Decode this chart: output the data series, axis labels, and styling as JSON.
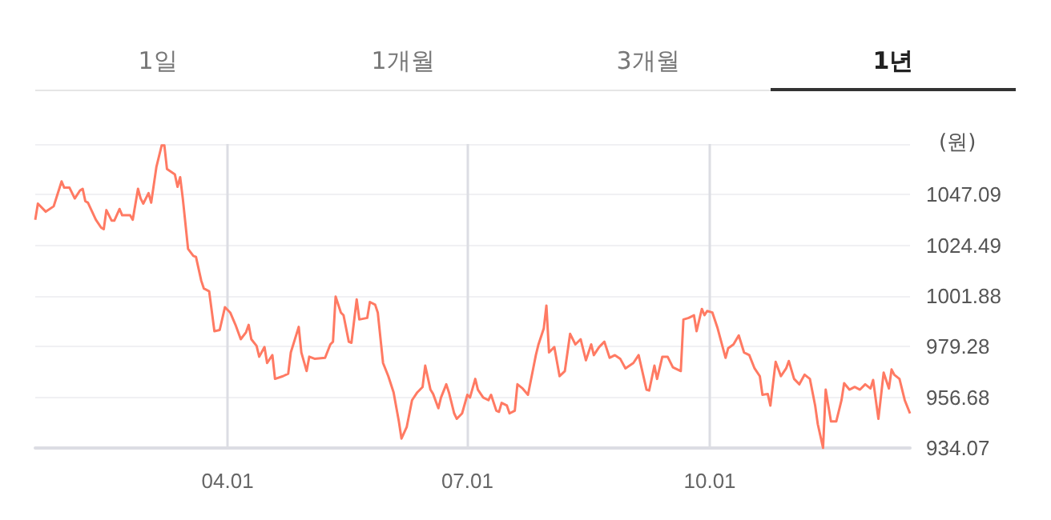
{
  "chart_data": {
    "type": "line",
    "ylabel": "(원)",
    "annotations": [
      "1일",
      "1개월",
      "3개월",
      "1년"
    ],
    "x": [
      "--01-18",
      "--01-19",
      "--01-22",
      "--01-25",
      "--01-28",
      "--01-29",
      "--01-31",
      "--02-02",
      "--02-04",
      "--02-05",
      "--02-06",
      "--02-07",
      "--02-10",
      "--02-12",
      "--02-13",
      "--02-14",
      "--02-16",
      "--02-17",
      "--02-19",
      "--02-20",
      "--02-23",
      "--02-24",
      "--02-26",
      "--02-27",
      "--02-28",
      "--03-02",
      "--03-03",
      "--03-05",
      "--03-07",
      "--03-08",
      "--03-09",
      "--03-12",
      "--03-13",
      "--03-14",
      "--03-15",
      "--03-17",
      "--03-19",
      "--03-20",
      "--03-22",
      "--03-23",
      "--03-25",
      "--03-27",
      "--03-29",
      "--03-31",
      "--04-02",
      "--04-04",
      "--04-06",
      "--04-08",
      "--04-09",
      "--04-10",
      "--04-12",
      "--04-13",
      "--04-15",
      "--04-16",
      "--04-18",
      "--04-19",
      "--04-22",
      "--04-24",
      "--04-25",
      "--04-28",
      "--04-29",
      "--05-01",
      "--05-02",
      "--05-04",
      "--05-08",
      "--05-10",
      "--05-11",
      "--05-12",
      "--05-14",
      "--05-15",
      "--05-17",
      "--05-18",
      "--05-20",
      "--05-21",
      "--05-24",
      "--05-25",
      "--05-27",
      "--05-28",
      "--05-30",
      "--06-01",
      "--06-03",
      "--06-05",
      "--06-06",
      "--06-08",
      "--06-10",
      "--06-12",
      "--06-14",
      "--06-15",
      "--06-17",
      "--06-18",
      "--06-20",
      "--06-21",
      "--06-23",
      "--06-24",
      "--06-26",
      "--06-27",
      "--06-29",
      "--07-01",
      "--07-02",
      "--07-04",
      "--07-05",
      "--07-07",
      "--07-09",
      "--07-10",
      "--07-12",
      "--07-13",
      "--07-14",
      "--07-16",
      "--07-17",
      "--07-19",
      "--07-20",
      "--07-22",
      "--07-24",
      "--07-26",
      "--07-27",
      "--07-28",
      "--07-30",
      "--07-31",
      "--08-01",
      "--08-03",
      "--08-05",
      "--08-07",
      "--08-09",
      "--08-11",
      "--08-13",
      "--08-15",
      "--08-17",
      "--08-18",
      "--08-20",
      "--08-22",
      "--08-24",
      "--08-26",
      "--08-28",
      "--08-30",
      "--09-02",
      "--09-04",
      "--09-07",
      "--09-08",
      "--09-10",
      "--09-11",
      "--09-13",
      "--09-15",
      "--09-17",
      "--09-20",
      "--09-21",
      "--09-23",
      "--09-25",
      "--09-26",
      "--09-28",
      "--09-29",
      "--09-30",
      "--10-02",
      "--10-04",
      "--10-07",
      "--10-08",
      "--10-10",
      "--10-12",
      "--10-14",
      "--10-16",
      "--10-18",
      "--10-20",
      "--10-21",
      "--10-23",
      "--10-24",
      "--10-26",
      "--10-28",
      "--10-30",
      "--10-31",
      "--11-02",
      "--11-04",
      "--11-06",
      "--11-08",
      "--11-10",
      "--11-11",
      "--11-13",
      "--11-14",
      "--11-16",
      "--11-18",
      "--11-20",
      "--11-21",
      "--11-23",
      "--11-25",
      "--11-27",
      "--11-29",
      "--12-01",
      "--12-02",
      "--12-04",
      "--12-06",
      "--12-08",
      "--12-09",
      "--12-10",
      "--12-12",
      "--12-14",
      "--12-16"
    ],
    "series": [
      {
        "color": "#ff7a63",
        "values": [
          1035.9,
          1043.1,
          1039.5,
          1041.9,
          1053.0,
          1050.2,
          1050.2,
          1045.4,
          1049.0,
          1049.7,
          1044.2,
          1043.5,
          1035.9,
          1032.4,
          1031.7,
          1040.2,
          1035.5,
          1035.5,
          1040.7,
          1037.9,
          1037.9,
          1035.9,
          1049.7,
          1045.4,
          1043.1,
          1047.8,
          1043.5,
          1059.6,
          1069.1,
          1069.1,
          1058.5,
          1056.1,
          1050.6,
          1054.9,
          1045.4,
          1022.9,
          1019.8,
          1019.3,
          1008.7,
          1005.2,
          1004.0,
          986.2,
          986.7,
          996.9,
          994.5,
          989.0,
          982.6,
          985.7,
          989.0,
          982.6,
          979.6,
          974.8,
          979.1,
          972.0,
          975.5,
          964.9,
          966.1,
          967.2,
          976.7,
          988.1,
          976.7,
          968.4,
          974.8,
          973.9,
          974.3,
          980.3,
          981.5,
          1001.6,
          994.5,
          993.3,
          981.5,
          981.0,
          1000.4,
          991.4,
          992.1,
          999.2,
          998.0,
          994.5,
          972.0,
          966.1,
          958.9,
          945.9,
          938.3,
          943.5,
          955.4,
          958.9,
          961.3,
          970.8,
          960.1,
          958.2,
          951.8,
          956.6,
          962.5,
          958.9,
          949.5,
          947.1,
          949.5,
          957.8,
          956.6,
          964.9,
          960.1,
          956.6,
          955.4,
          957.8,
          950.7,
          950.2,
          954.2,
          953.0,
          949.5,
          950.7,
          962.5,
          960.6,
          957.8,
          969.6,
          975.5,
          980.3,
          987.4,
          997.6,
          976.7,
          979.1,
          966.1,
          968.4,
          985.0,
          980.3,
          982.6,
          973.2,
          980.3,
          975.5,
          979.1,
          981.5,
          974.3,
          975.5,
          973.9,
          969.6,
          972.0,
          975.5,
          960.1,
          959.7,
          970.8,
          964.9,
          974.8,
          974.8,
          970.1,
          968.4,
          991.4,
          992.1,
          993.3,
          986.2,
          996.1,
          993.3,
          995.2,
          994.5,
          987.4,
          974.3,
          978.6,
          980.3,
          984.3,
          976.7,
          975.5,
          969.6,
          966.1,
          957.8,
          958.2,
          953.0,
          972.5,
          966.1,
          969.6,
          972.9,
          964.9,
          962.5,
          966.8,
          964.9,
          953.0,
          944.7,
          934.1,
          960.1,
          945.9,
          945.9,
          955.4,
          963.0,
          960.1,
          961.3,
          960.1,
          962.5,
          960.6,
          964.4,
          947.1,
          967.7,
          960.6,
          969.1,
          966.8,
          964.9,
          955.4,
          949.5
        ]
      }
    ],
    "xlim": [
      "--01-18",
      "--12-16"
    ],
    "xticks": [
      {
        "value": "--04-01",
        "label": "04.01"
      },
      {
        "value": "--07-01",
        "label": "07.01"
      },
      {
        "value": "--10-01",
        "label": "10.01"
      }
    ],
    "ylim": [
      934.07,
      1069.69
    ],
    "yticks": [
      934.07,
      956.68,
      979.28,
      1001.88,
      1024.49,
      1047.09,
      {
        "value": 1069.69,
        "label": null
      }
    ],
    "grid": true,
    "marker": "none",
    "line_style": "solid"
  }
}
